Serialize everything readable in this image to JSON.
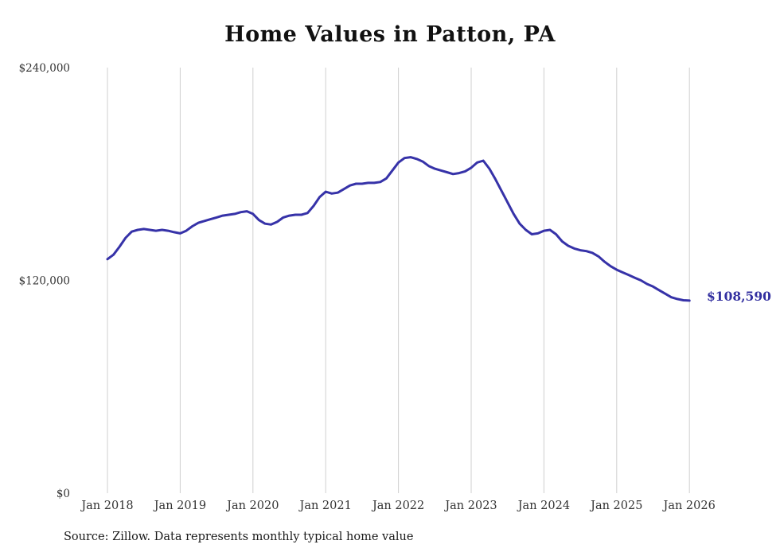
{
  "title": "Home Values in Patton, PA",
  "source_note": "Source: Zillow. Data represents monthly typical home value",
  "end_label": "$108,590",
  "colors": {
    "line": "#3632a8",
    "end_label": "#3330a0",
    "grid": "#cfcfcf",
    "axis_text": "#333333"
  },
  "chart_data": {
    "type": "line",
    "title": "Home Values in Patton, PA",
    "xlabel": "",
    "ylabel": "",
    "ylim": [
      0,
      240000
    ],
    "grid": "vertical-only",
    "legend": "none",
    "x_tick_labels": [
      "Jan 2018",
      "Jan 2019",
      "Jan 2020",
      "Jan 2021",
      "Jan 2022",
      "Jan 2023",
      "Jan 2024",
      "Jan 2025",
      "Jan 2026"
    ],
    "y_ticks": [
      {
        "label": "$240,000",
        "value": 240000
      },
      {
        "label": "$120,000",
        "value": 120000
      },
      {
        "label": "$0",
        "value": 0
      }
    ],
    "frequency": "monthly",
    "x_start": "2018-01",
    "x_end": "2026-01",
    "end_value": 108590,
    "series": [
      {
        "name": "Typical home value",
        "values": [
          132000,
          134500,
          139000,
          144000,
          147500,
          148500,
          149000,
          148500,
          148000,
          148500,
          148000,
          147200,
          146500,
          148000,
          150500,
          152500,
          153500,
          154500,
          155500,
          156500,
          157000,
          157500,
          158500,
          159000,
          157500,
          154000,
          152000,
          151500,
          153000,
          155500,
          156500,
          157000,
          157000,
          158000,
          162000,
          167000,
          170000,
          169000,
          169500,
          171500,
          173500,
          174500,
          174500,
          175000,
          175000,
          175500,
          177500,
          182000,
          186500,
          189000,
          189500,
          188500,
          187000,
          184500,
          183000,
          182000,
          181000,
          180000,
          180500,
          181500,
          183500,
          186500,
          187500,
          183000,
          177000,
          170500,
          164000,
          157500,
          152000,
          148500,
          146000,
          146500,
          148000,
          148500,
          146000,
          142000,
          139500,
          138000,
          137000,
          136500,
          135500,
          133500,
          130500,
          128000,
          126000,
          124500,
          123000,
          121500,
          120000,
          118000,
          116500,
          114500,
          112500,
          110500,
          109500,
          108800,
          108590
        ]
      }
    ]
  }
}
